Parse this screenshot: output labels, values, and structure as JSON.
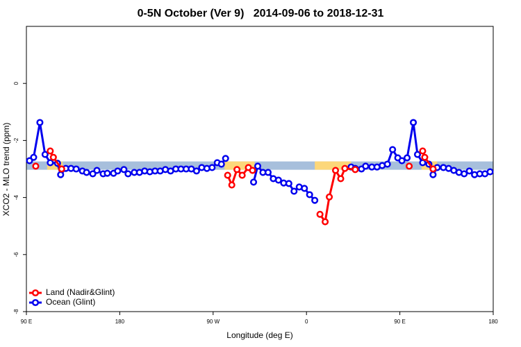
{
  "chart_data": {
    "type": "line",
    "title": "0-5N October (Ver 9)   2014-09-06 to 2018-12-31",
    "xlabel": "Longitude (deg E)",
    "ylabel": "XCO2 - MLO trend (ppm)",
    "xlim": [
      90,
      540
    ],
    "ylim": [
      -8,
      2
    ],
    "xticks": [
      {
        "value": 90,
        "label": "90 E"
      },
      180,
      {
        "value": 270,
        "label": "90 W"
      },
      {
        "value": 360,
        "label": "0"
      },
      {
        "value": 450,
        "label": "90 E"
      },
      {
        "value": 540,
        "label": "180"
      }
    ],
    "yticks": [
      0,
      -2,
      -4,
      -6,
      -8
    ],
    "legend": "bottom-left",
    "band": {
      "y": -2.88,
      "ocean_color": "#a7bfdc",
      "land_color": "#fcd77a",
      "land": [
        [
          110,
          125
        ],
        [
          281,
          310
        ],
        [
          368,
          403
        ],
        [
          471,
          486
        ]
      ]
    },
    "series": [
      {
        "name": "Land (Nadir&Glint)",
        "color": "#ff0000",
        "x": [
          99,
          null,
          113,
          116,
          124,
          null,
          284,
          288,
          293,
          298,
          304,
          308,
          null,
          373,
          378,
          382,
          388,
          393,
          397,
          407,
          null,
          459,
          null,
          472,
          474,
          482
        ],
        "values": [
          -2.9,
          null,
          -2.37,
          -2.59,
          -3.0,
          null,
          -3.22,
          -3.56,
          -3.02,
          -3.22,
          -2.95,
          -3.05,
          null,
          -4.59,
          -4.85,
          -3.98,
          -3.05,
          -3.34,
          -2.98,
          -3.02,
          null,
          -2.9,
          null,
          -2.37,
          -2.59,
          -3.0
        ]
      },
      {
        "name": "Ocean (Glint)",
        "color": "#0000ee",
        "x": [
          93,
          97,
          103,
          108,
          113,
          120,
          123,
          128,
          133,
          138,
          144,
          148,
          154,
          158,
          164,
          168,
          174,
          178,
          184,
          188,
          194,
          199,
          204,
          209,
          214,
          219,
          224,
          229,
          234,
          239,
          244,
          249,
          254,
          259,
          264,
          269,
          274,
          278,
          282,
          null,
          309,
          313,
          318,
          323,
          328,
          333,
          338,
          343,
          348,
          353,
          358,
          363,
          368,
          null,
          403,
          407,
          413,
          417,
          423,
          428,
          433,
          438,
          443,
          448,
          452,
          457,
          463,
          467,
          472,
          478,
          482,
          486,
          492,
          497,
          502,
          507,
          512,
          517,
          522,
          527,
          532,
          537
        ],
        "values": [
          -2.71,
          -2.59,
          -1.37,
          -2.49,
          -2.78,
          -2.8,
          -3.2,
          -2.98,
          -2.98,
          -3.0,
          -3.07,
          -3.12,
          -3.17,
          -3.05,
          -3.17,
          -3.15,
          -3.15,
          -3.07,
          -3.02,
          -3.17,
          -3.12,
          -3.12,
          -3.07,
          -3.1,
          -3.07,
          -3.07,
          -3.02,
          -3.07,
          -3.0,
          -3.0,
          -3.0,
          -3.0,
          -3.07,
          -2.95,
          -2.98,
          -2.95,
          -2.78,
          -2.83,
          -2.63,
          null,
          -3.46,
          -2.9,
          -3.12,
          -3.12,
          -3.34,
          -3.39,
          -3.49,
          -3.51,
          -3.78,
          -3.63,
          -3.68,
          -3.9,
          -4.1,
          null,
          -2.93,
          -2.98,
          -3.0,
          -2.9,
          -2.93,
          -2.93,
          -2.88,
          -2.83,
          -2.32,
          -2.61,
          -2.71,
          -2.61,
          -1.37,
          -2.49,
          -2.78,
          -2.83,
          -3.2,
          -2.95,
          -2.95,
          -2.98,
          -3.05,
          -3.12,
          -3.17,
          -3.07,
          -3.2,
          -3.17,
          -3.17,
          -3.1
        ]
      }
    ]
  }
}
